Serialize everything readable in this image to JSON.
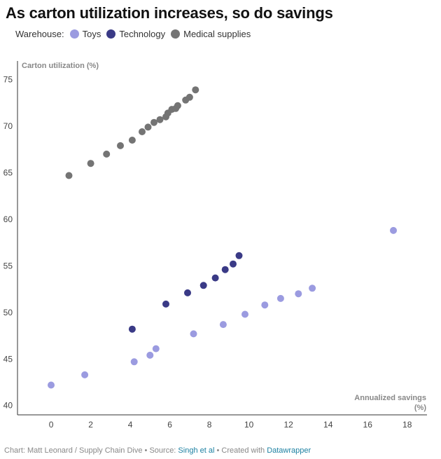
{
  "title": "As carton utilization increases, so do savings",
  "legend": {
    "label": "Warehouse:",
    "items": [
      {
        "name": "Toys",
        "color": "#9b9be0"
      },
      {
        "name": "Technology",
        "color": "#3a3a86"
      },
      {
        "name": "Medical supplies",
        "color": "#747474"
      }
    ]
  },
  "footer": {
    "prefix": "Chart: Matt Leonard / Supply Chain Dive • Source: ",
    "source": "Singh et al",
    "mid": " • Created with ",
    "tool": "Datawrapper"
  },
  "chart_data": {
    "type": "scatter",
    "title": "As carton utilization increases, so do savings",
    "xlabel_line1": "Annualized savings",
    "xlabel_line2": "(%)",
    "ylabel": "Carton utilization (%)",
    "xlim": [
      -1.7,
      19.0
    ],
    "ylim": [
      39.0,
      77.0
    ],
    "x_ticks": [
      0,
      2,
      4,
      6,
      8,
      10,
      12,
      14,
      16,
      18
    ],
    "y_ticks": [
      40,
      45,
      50,
      55,
      60,
      65,
      70,
      75
    ],
    "grid": false,
    "legend_position": "top-left",
    "series": [
      {
        "name": "Toys",
        "color": "#9b9be0",
        "points": [
          [
            0.0,
            42.2
          ],
          [
            1.7,
            43.3
          ],
          [
            4.2,
            44.7
          ],
          [
            5.0,
            45.4
          ],
          [
            5.3,
            46.1
          ],
          [
            7.2,
            47.7
          ],
          [
            8.7,
            48.7
          ],
          [
            9.8,
            49.8
          ],
          [
            10.8,
            50.8
          ],
          [
            11.6,
            51.5
          ],
          [
            12.5,
            52.0
          ],
          [
            13.2,
            52.6
          ],
          [
            17.3,
            58.8
          ]
        ]
      },
      {
        "name": "Technology",
        "color": "#3a3a86",
        "points": [
          [
            4.1,
            48.2
          ],
          [
            5.8,
            50.9
          ],
          [
            6.9,
            52.1
          ],
          [
            7.7,
            52.9
          ],
          [
            8.3,
            53.7
          ],
          [
            8.8,
            54.6
          ],
          [
            9.2,
            55.2
          ],
          [
            9.5,
            56.1
          ]
        ]
      },
      {
        "name": "Medical supplies",
        "color": "#747474",
        "points": [
          [
            0.9,
            64.7
          ],
          [
            2.0,
            66.0
          ],
          [
            2.8,
            67.0
          ],
          [
            3.5,
            67.9
          ],
          [
            4.1,
            68.5
          ],
          [
            4.6,
            69.4
          ],
          [
            4.9,
            69.9
          ],
          [
            5.2,
            70.4
          ],
          [
            5.5,
            70.7
          ],
          [
            5.8,
            71.0
          ],
          [
            5.9,
            71.4
          ],
          [
            6.1,
            71.8
          ],
          [
            6.3,
            71.9
          ],
          [
            6.4,
            72.2
          ],
          [
            6.8,
            72.8
          ],
          [
            7.0,
            73.1
          ],
          [
            7.3,
            73.9
          ]
        ]
      }
    ]
  }
}
